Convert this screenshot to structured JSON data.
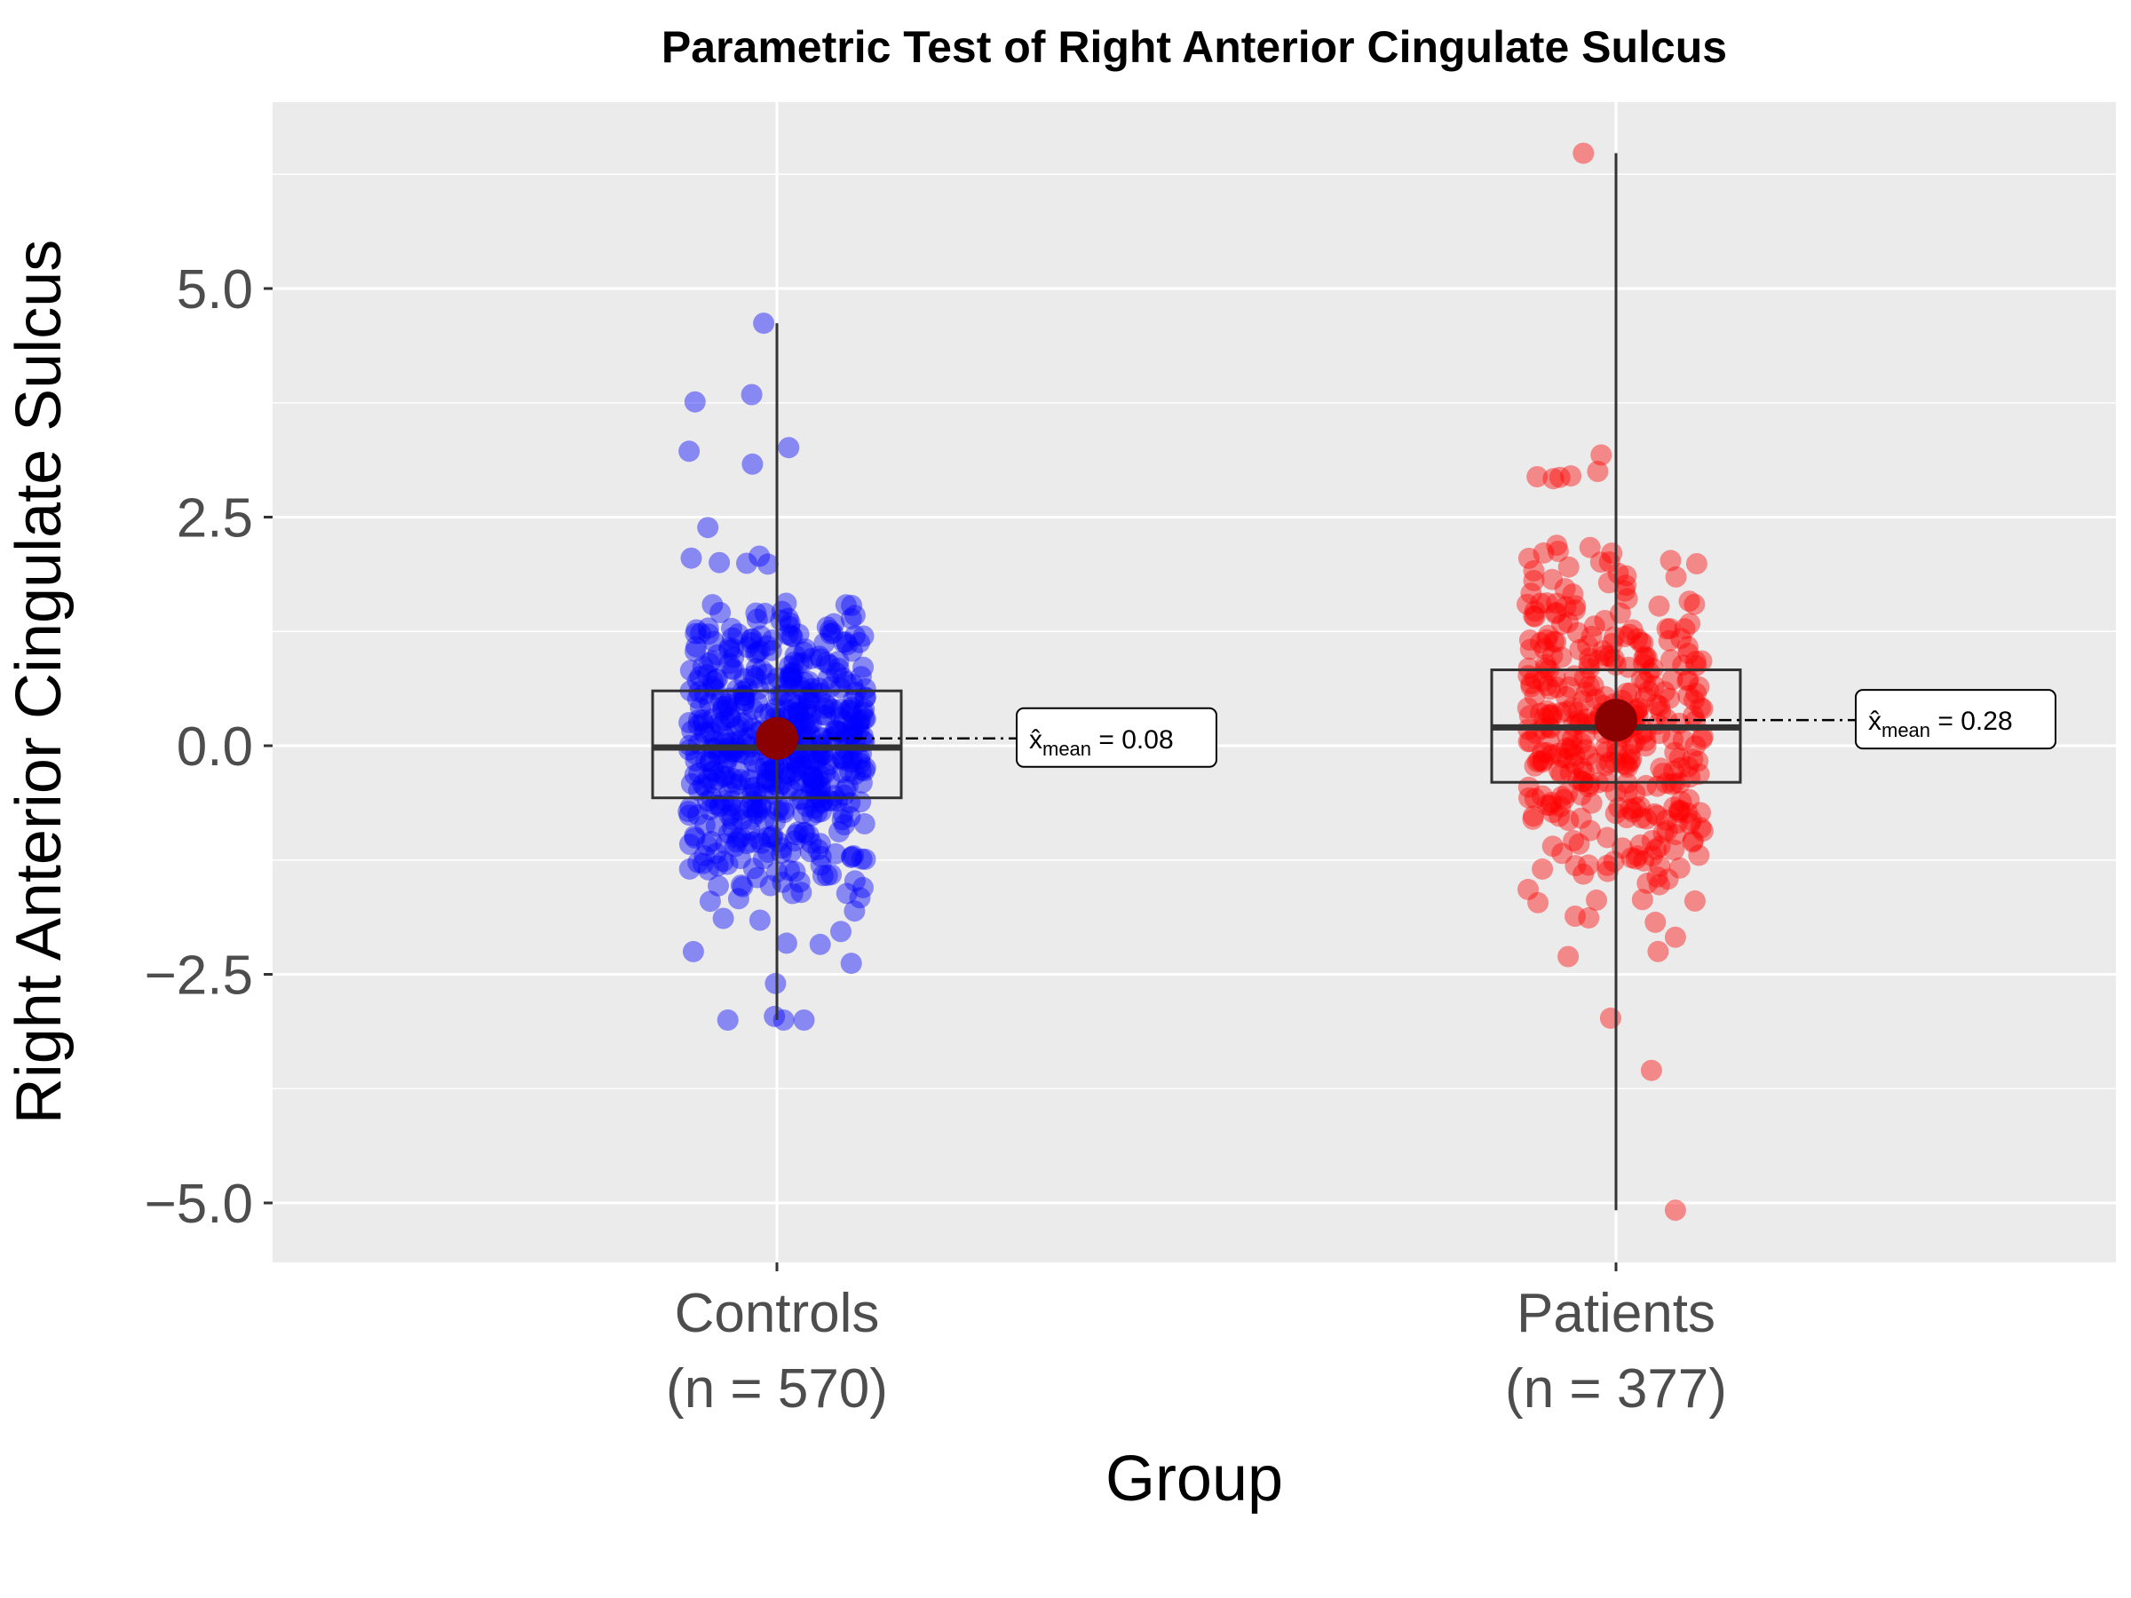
{
  "chart_data": {
    "type": "box",
    "title": "Parametric Test of Right Anterior Cingulate Sulcus",
    "xlabel": "Group",
    "ylabel": "Right Anterior Cingulate Sulcus",
    "ylim": [
      -5.7,
      7.0
    ],
    "yticks": [
      -5.0,
      -2.5,
      0.0,
      2.5,
      5.0
    ],
    "ytick_labels": [
      "−5.0",
      "−2.5",
      "0.0",
      "2.5",
      "5.0"
    ],
    "grid": true,
    "categories": [
      {
        "name": "Controls",
        "n_label": "(n = 570)"
      },
      {
        "name": "Patients",
        "n_label": "(n = 377)"
      }
    ],
    "series": [
      {
        "name": "Controls",
        "n": 570,
        "color": "#0000ff",
        "box": {
          "q1": -0.57,
          "median": -0.02,
          "q3": 0.6
        },
        "whisker": [
          -3.0,
          4.62
        ],
        "mean": 0.08,
        "mean_label": "0.08",
        "max": 4.62,
        "min": -3.0,
        "notable_points": [
          4.62,
          3.84,
          3.76,
          3.26,
          3.22,
          3.08,
          -2.38,
          -2.6,
          -2.96,
          -3.0
        ]
      },
      {
        "name": "Patients",
        "n": 377,
        "color": "#ff0000",
        "box": {
          "q1": -0.4,
          "median": 0.2,
          "q3": 0.83
        },
        "whisker": [
          -5.08,
          6.48
        ],
        "mean": 0.28,
        "mean_label": "0.28",
        "max": 6.48,
        "min": -5.08,
        "notable_points": [
          6.48,
          3.18,
          3.0,
          2.95,
          2.92,
          -2.25,
          -2.98,
          -3.55,
          -5.08
        ]
      }
    ],
    "mean_point_color": "#8b0000",
    "mean_annotation_prefix": "mean",
    "mean_annotation_symbol": "x̂"
  }
}
